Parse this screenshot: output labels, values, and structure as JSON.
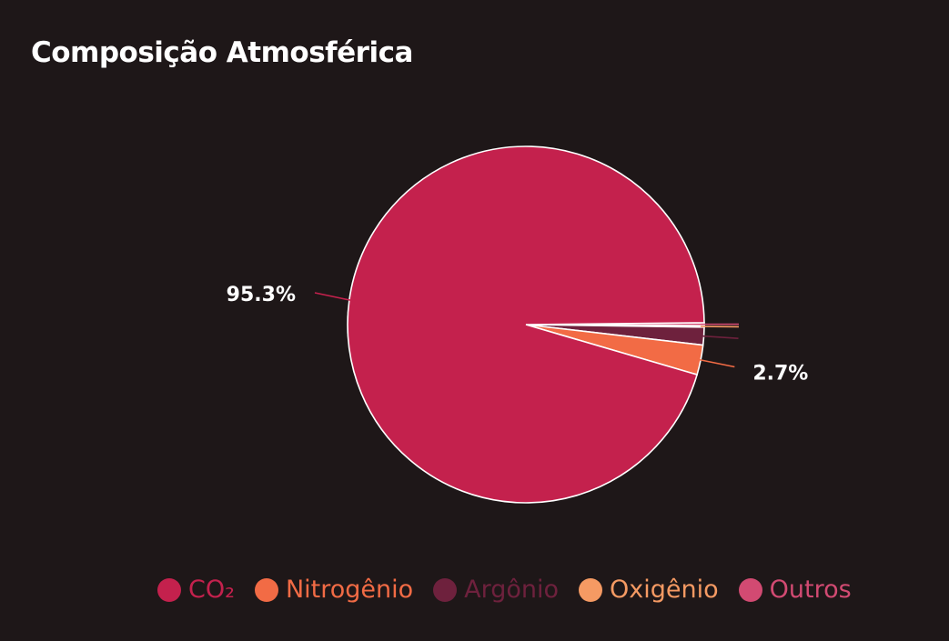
{
  "title": "Composição Atmosférica",
  "chart_data": {
    "type": "pie",
    "title": "Composição Atmosférica",
    "categories": [
      "CO₂",
      "Nitrogênio",
      "Argônio",
      "Oxigênio",
      "Outros"
    ],
    "values": [
      95.3,
      2.7,
      1.6,
      0.13,
      0.27
    ],
    "colors": [
      "#c4214d",
      "#f26b45",
      "#6e213d",
      "#f59a63",
      "#d24a72"
    ],
    "data_labels": [
      "95.3%",
      "2.7%",
      "",
      "",
      ""
    ],
    "legend_position": "bottom"
  },
  "legend": {
    "items": [
      {
        "label": "CO₂",
        "color": "#c4214d"
      },
      {
        "label": "Nitrogênio",
        "color": "#f26b45"
      },
      {
        "label": "Argônio",
        "color": "#6e213d"
      },
      {
        "label": "Oxigênio",
        "color": "#f59a63"
      },
      {
        "label": "Outros",
        "color": "#d24a72"
      }
    ]
  }
}
